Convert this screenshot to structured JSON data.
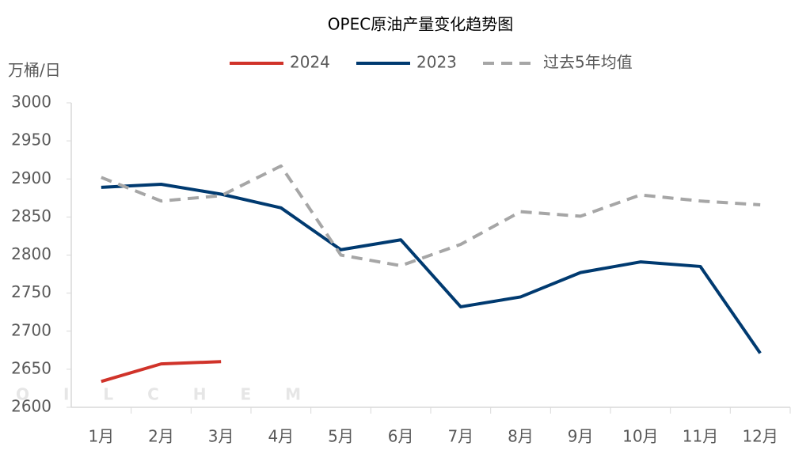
{
  "chart_data": {
    "type": "line",
    "title": "OPEC原油产量变化趋势图",
    "y_label": "万桶/日",
    "watermark": "OILCHEM",
    "categories": [
      "1月",
      "2月",
      "3月",
      "4月",
      "5月",
      "6月",
      "7月",
      "8月",
      "9月",
      "10月",
      "11月",
      "12月"
    ],
    "series": [
      {
        "name": "2024",
        "color": "#d0332a",
        "dash": false,
        "values": [
          2634,
          2657,
          2660,
          null,
          null,
          null,
          null,
          null,
          null,
          null,
          null,
          null
        ]
      },
      {
        "name": "2023",
        "color": "#003a70",
        "dash": false,
        "values": [
          2889,
          2893,
          2880,
          2862,
          2807,
          2820,
          2732,
          2745,
          2777,
          2791,
          2785,
          2671
        ]
      },
      {
        "name": "过去5年均值",
        "color": "#a6a6a6",
        "dash": true,
        "values": [
          2902,
          2871,
          2878,
          2917,
          2800,
          2786,
          2814,
          2857,
          2851,
          2879,
          2871,
          2866
        ]
      }
    ],
    "ylim": [
      2600,
      3000
    ],
    "yticks": [
      2600,
      2650,
      2700,
      2750,
      2800,
      2850,
      2900,
      2950,
      3000
    ],
    "grid": false,
    "legend": "top"
  }
}
